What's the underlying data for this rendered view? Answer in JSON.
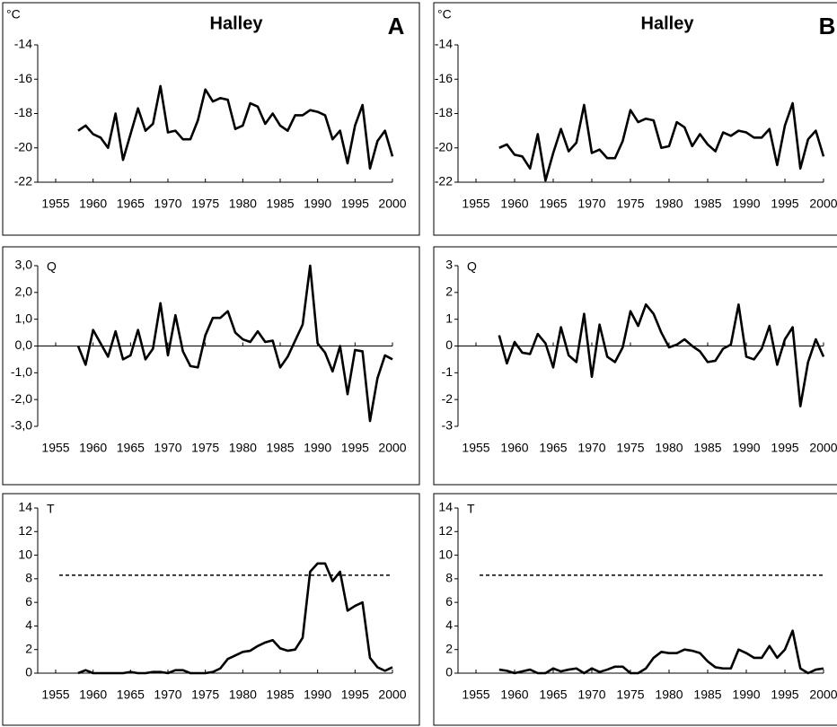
{
  "chart_data": [
    {
      "type": "line",
      "title": "Halley",
      "panel_label": "A",
      "y_label": "°C",
      "x": [
        1958,
        1959,
        1960,
        1961,
        1962,
        1963,
        1964,
        1965,
        1966,
        1967,
        1968,
        1969,
        1970,
        1971,
        1972,
        1973,
        1974,
        1975,
        1976,
        1977,
        1978,
        1979,
        1980,
        1981,
        1982,
        1983,
        1984,
        1985,
        1986,
        1987,
        1988,
        1989,
        1990,
        1991,
        1992,
        1993,
        1994,
        1995,
        1996,
        1997,
        1998,
        1999,
        2000
      ],
      "series": [
        {
          "color": "#000000",
          "values": [
            -19.0,
            -18.7,
            -19.2,
            -19.4,
            -20.0,
            -18.0,
            -20.7,
            -19.2,
            -17.7,
            -19.0,
            -18.6,
            -16.4,
            -19.1,
            -19.0,
            -19.5,
            -19.5,
            -18.4,
            -16.6,
            -17.3,
            -17.1,
            -17.2,
            -18.9,
            -18.7,
            -17.4,
            -17.6,
            -18.6,
            -18.0,
            -18.7,
            -19.0,
            -18.1,
            -18.1,
            -17.8,
            -17.9,
            -18.1,
            -19.5,
            -19.0,
            -20.9,
            -18.7,
            -17.5,
            -21.2,
            -19.6,
            -19.0,
            -20.5
          ]
        }
      ],
      "xlim": [
        1955,
        2000
      ],
      "xticks": [
        1955,
        1960,
        1965,
        1970,
        1975,
        1980,
        1985,
        1990,
        1995,
        2000
      ],
      "ylim": [
        -22,
        -14
      ],
      "yticks": [
        -22,
        -20,
        -18,
        -16,
        -14
      ],
      "grid": false
    },
    {
      "type": "line",
      "title": "Halley",
      "panel_label": "B",
      "y_label": "°C",
      "x": [
        1958,
        1959,
        1960,
        1961,
        1962,
        1963,
        1964,
        1965,
        1966,
        1967,
        1968,
        1969,
        1970,
        1971,
        1972,
        1973,
        1974,
        1975,
        1976,
        1977,
        1978,
        1979,
        1980,
        1981,
        1982,
        1983,
        1984,
        1985,
        1986,
        1987,
        1988,
        1989,
        1990,
        1991,
        1992,
        1993,
        1994,
        1995,
        1996,
        1997,
        1998,
        1999,
        2000
      ],
      "series": [
        {
          "color": "#000000",
          "values": [
            -20.0,
            -19.8,
            -20.4,
            -20.5,
            -21.2,
            -19.2,
            -21.9,
            -20.3,
            -18.9,
            -20.2,
            -19.7,
            -17.5,
            -20.3,
            -20.1,
            -20.6,
            -20.6,
            -19.6,
            -17.8,
            -18.5,
            -18.3,
            -18.4,
            -20.0,
            -19.9,
            -18.5,
            -18.8,
            -19.9,
            -19.2,
            -19.8,
            -20.2,
            -19.1,
            -19.3,
            -19.0,
            -19.1,
            -19.4,
            -19.4,
            -18.9,
            -21.0,
            -18.7,
            -17.4,
            -21.2,
            -19.5,
            -19.0,
            -20.5
          ]
        }
      ],
      "xlim": [
        1955,
        2000
      ],
      "xticks": [
        1955,
        1960,
        1965,
        1970,
        1975,
        1980,
        1985,
        1990,
        1995,
        2000
      ],
      "ylim": [
        -22,
        -14
      ],
      "yticks": [
        -22,
        -20,
        -18,
        -16,
        -14
      ],
      "grid": false
    },
    {
      "type": "line",
      "y_label": "Q",
      "x": [
        1958,
        1959,
        1960,
        1961,
        1962,
        1963,
        1964,
        1965,
        1966,
        1967,
        1968,
        1969,
        1970,
        1971,
        1972,
        1973,
        1974,
        1975,
        1976,
        1977,
        1978,
        1979,
        1980,
        1981,
        1982,
        1983,
        1984,
        1985,
        1986,
        1987,
        1988,
        1989,
        1990,
        1991,
        1992,
        1993,
        1994,
        1995,
        1996,
        1997,
        1998,
        1999,
        2000
      ],
      "series": [
        {
          "color": "#000000",
          "values": [
            0.0,
            -0.7,
            0.6,
            0.1,
            -0.4,
            0.55,
            -0.5,
            -0.35,
            0.6,
            -0.5,
            -0.1,
            1.6,
            -0.35,
            1.15,
            -0.2,
            -0.75,
            -0.8,
            0.4,
            1.05,
            1.05,
            1.3,
            0.5,
            0.25,
            0.15,
            0.55,
            0.15,
            0.2,
            -0.8,
            -0.4,
            0.2,
            0.8,
            3.0,
            0.1,
            -0.25,
            -0.95,
            0.0,
            -1.8,
            -0.15,
            -0.2,
            -2.8,
            -1.2,
            -0.35,
            -0.5
          ]
        }
      ],
      "xlim": [
        1955,
        2000
      ],
      "xticks": [
        1955,
        1960,
        1965,
        1970,
        1975,
        1980,
        1985,
        1990,
        1995,
        2000
      ],
      "ylim": [
        -3,
        3
      ],
      "yticks": [
        {
          "value": -3,
          "label": "-3,0"
        },
        {
          "value": -2,
          "label": "-2,0"
        },
        {
          "value": -1,
          "label": "-1,0"
        },
        {
          "value": 0,
          "label": "0,0"
        },
        {
          "value": 1,
          "label": "1,0"
        },
        {
          "value": 2,
          "label": "2,0"
        },
        {
          "value": 3,
          "label": "3,0"
        }
      ],
      "grid": false
    },
    {
      "type": "line",
      "y_label": "Q",
      "x": [
        1958,
        1959,
        1960,
        1961,
        1962,
        1963,
        1964,
        1965,
        1966,
        1967,
        1968,
        1969,
        1970,
        1971,
        1972,
        1973,
        1974,
        1975,
        1976,
        1977,
        1978,
        1979,
        1980,
        1981,
        1982,
        1983,
        1984,
        1985,
        1986,
        1987,
        1988,
        1989,
        1990,
        1991,
        1992,
        1993,
        1994,
        1995,
        1996,
        1997,
        1998,
        1999,
        2000
      ],
      "series": [
        {
          "color": "#000000",
          "values": [
            0.4,
            -0.65,
            0.15,
            -0.25,
            -0.3,
            0.45,
            0.1,
            -0.8,
            0.7,
            -0.35,
            -0.6,
            1.2,
            -1.15,
            0.8,
            -0.4,
            -0.6,
            -0.05,
            1.3,
            0.75,
            1.55,
            1.2,
            0.5,
            -0.05,
            0.05,
            0.25,
            0.0,
            -0.2,
            -0.6,
            -0.55,
            -0.1,
            0.05,
            1.55,
            -0.4,
            -0.5,
            -0.1,
            0.75,
            -0.7,
            0.25,
            0.7,
            -2.25,
            -0.6,
            0.25,
            -0.4
          ]
        }
      ],
      "xlim": [
        1955,
        2000
      ],
      "xticks": [
        1955,
        1960,
        1965,
        1970,
        1975,
        1980,
        1985,
        1990,
        1995,
        2000
      ],
      "ylim": [
        -3,
        3
      ],
      "yticks": [
        -3,
        -2,
        -1,
        0,
        1,
        2,
        3
      ],
      "grid": false
    },
    {
      "type": "line",
      "y_label": "T",
      "reference_line": 8.3,
      "x": [
        1958,
        1959,
        1960,
        1961,
        1962,
        1963,
        1964,
        1965,
        1966,
        1967,
        1968,
        1969,
        1970,
        1971,
        1972,
        1973,
        1974,
        1975,
        1976,
        1977,
        1978,
        1979,
        1980,
        1981,
        1982,
        1983,
        1984,
        1985,
        1986,
        1987,
        1988,
        1989,
        1990,
        1991,
        1992,
        1993,
        1994,
        1995,
        1996,
        1997,
        1998,
        1999,
        2000
      ],
      "series": [
        {
          "color": "#000000",
          "values": [
            0.0,
            0.25,
            0.0,
            0.0,
            0.0,
            0.0,
            0.0,
            0.1,
            0.0,
            0.0,
            0.1,
            0.1,
            0.0,
            0.25,
            0.25,
            0.0,
            0.0,
            0.0,
            0.1,
            0.4,
            1.2,
            1.5,
            1.8,
            1.9,
            2.3,
            2.6,
            2.8,
            2.1,
            1.9,
            2.0,
            3.0,
            8.6,
            9.3,
            9.3,
            7.8,
            8.6,
            5.3,
            5.7,
            6.0,
            1.3,
            0.5,
            0.2,
            0.5
          ]
        }
      ],
      "xlim": [
        1955,
        2000
      ],
      "xticks": [
        1955,
        1960,
        1965,
        1970,
        1975,
        1980,
        1985,
        1990,
        1995,
        2000
      ],
      "ylim": [
        0,
        14
      ],
      "yticks": [
        0,
        2,
        4,
        6,
        8,
        10,
        12,
        14
      ],
      "grid": false
    },
    {
      "type": "line",
      "y_label": "T",
      "reference_line": 8.3,
      "x": [
        1958,
        1959,
        1960,
        1961,
        1962,
        1963,
        1964,
        1965,
        1966,
        1967,
        1968,
        1969,
        1970,
        1971,
        1972,
        1973,
        1974,
        1975,
        1976,
        1977,
        1978,
        1979,
        1980,
        1981,
        1982,
        1983,
        1984,
        1985,
        1986,
        1987,
        1988,
        1989,
        1990,
        1991,
        1992,
        1993,
        1994,
        1995,
        1996,
        1997,
        1998,
        1999,
        2000
      ],
      "series": [
        {
          "color": "#000000",
          "values": [
            0.3,
            0.2,
            0.0,
            0.15,
            0.3,
            0.0,
            0.0,
            0.4,
            0.15,
            0.3,
            0.4,
            0.0,
            0.4,
            0.1,
            0.3,
            0.55,
            0.55,
            0.0,
            0.0,
            0.4,
            1.3,
            1.8,
            1.7,
            1.7,
            2.0,
            1.9,
            1.7,
            1.0,
            0.5,
            0.4,
            0.4,
            2.0,
            1.7,
            1.3,
            1.3,
            2.3,
            1.3,
            2.0,
            3.6,
            0.4,
            0.0,
            0.3,
            0.4
          ]
        }
      ],
      "xlim": [
        1955,
        2000
      ],
      "xticks": [
        1955,
        1960,
        1965,
        1970,
        1975,
        1980,
        1985,
        1990,
        1995,
        2000
      ],
      "ylim": [
        0,
        14
      ],
      "yticks": [
        0,
        2,
        4,
        6,
        8,
        10,
        12,
        14
      ],
      "grid": false
    }
  ]
}
